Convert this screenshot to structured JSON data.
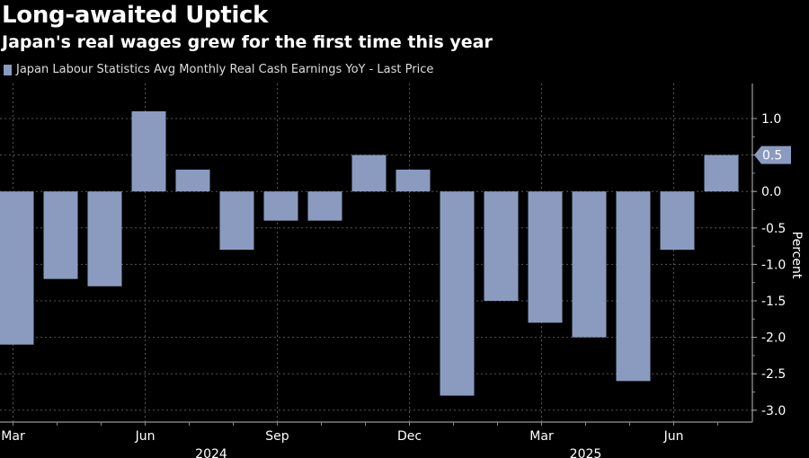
{
  "header": {
    "title": "Long-awaited Uptick",
    "subtitle": "Japan's real wages grew for the first time this year"
  },
  "chart_data": {
    "type": "bar",
    "series": [
      {
        "name": "Japan Labour Statistics Avg Monthly Real Cash Earnings YoY - Last Price",
        "color": "#8a9bbf",
        "values": [
          -2.1,
          -1.2,
          -1.3,
          1.1,
          0.3,
          -0.8,
          -0.4,
          -0.4,
          0.5,
          0.3,
          -2.8,
          -1.5,
          -1.8,
          -2.0,
          -2.6,
          -0.8,
          0.5
        ]
      }
    ],
    "categories": [
      "Mar 2024",
      "Apr 2024",
      "May 2024",
      "Jun 2024",
      "Jul 2024",
      "Aug 2024",
      "Sep 2024",
      "Oct 2024",
      "Nov 2024",
      "Dec 2024",
      "Jan 2025",
      "Feb 2025",
      "Mar 2025",
      "Apr 2025",
      "May 2025",
      "Jun 2025",
      "Jul 2025"
    ],
    "x_tick_labels": [
      {
        "category": 0,
        "label": "Mar"
      },
      {
        "category": 3,
        "label": "Jun"
      },
      {
        "category": 6,
        "label": "Sep"
      },
      {
        "category": 9,
        "label": "Dec"
      },
      {
        "category": 12,
        "label": "Mar"
      },
      {
        "category": 15,
        "label": "Jun"
      }
    ],
    "year_labels": [
      {
        "category": 4.5,
        "label": "2024"
      },
      {
        "category": 13,
        "label": "2025"
      }
    ],
    "ylabel": "Percent",
    "ylim": [
      -3.0,
      1.0
    ],
    "yticks": [
      1.0,
      0.5,
      0.0,
      -0.5,
      -1.0,
      -1.5,
      -2.0,
      -2.5,
      -3.0
    ],
    "last_price_label": "0.5",
    "last_price_value": 0.5,
    "grid": true,
    "legend_position": "top-left"
  }
}
